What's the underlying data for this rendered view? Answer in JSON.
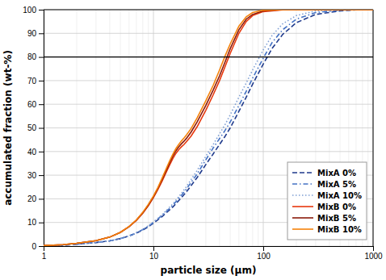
{
  "chart_data": {
    "type": "line",
    "xlabel": "particle size (μm)",
    "ylabel": "accumulated fraction (wt-%)",
    "log": "x",
    "xlim": [
      1,
      1000
    ],
    "ylim": [
      0,
      100
    ],
    "xticks": [
      1,
      10,
      100,
      1000
    ],
    "xticks_minor": [
      2,
      3,
      4,
      5,
      6,
      7,
      8,
      9,
      20,
      30,
      40,
      50,
      60,
      70,
      80,
      90,
      200,
      300,
      400,
      500,
      600,
      700,
      800,
      900
    ],
    "yticks": [
      0,
      10,
      20,
      30,
      40,
      50,
      60,
      70,
      80,
      90,
      100
    ],
    "grid": true,
    "legend": "lower right",
    "reference_line": {
      "value": 80,
      "color": "#000000"
    },
    "series": [
      {
        "name": "MixA 0%",
        "color": "#1f3a8c",
        "line_style": "dashed",
        "x": [
          1,
          1.5,
          2,
          3,
          4,
          5,
          6,
          7,
          8,
          9,
          10,
          12,
          15,
          18,
          20,
          25,
          30,
          35,
          40,
          45,
          50,
          60,
          70,
          80,
          90,
          100,
          120,
          150,
          200,
          300,
          500,
          700,
          1000
        ],
        "values": [
          0.1,
          0.4,
          0.8,
          1.5,
          2.2,
          3.2,
          4.3,
          5.5,
          6.8,
          8.2,
          9.7,
          12.5,
          16.5,
          20.5,
          23.0,
          29.0,
          34.5,
          39.0,
          43.0,
          46.5,
          50.0,
          57.0,
          63.0,
          68.5,
          73.0,
          77.0,
          83.5,
          89.5,
          94.5,
          98.0,
          99.5,
          99.9,
          100
        ]
      },
      {
        "name": "MixA 5%",
        "color": "#4472c4",
        "line_style": "dashdot",
        "x": [
          1,
          1.5,
          2,
          3,
          4,
          5,
          6,
          7,
          8,
          9,
          10,
          12,
          15,
          18,
          20,
          25,
          30,
          35,
          40,
          45,
          50,
          60,
          70,
          80,
          90,
          100,
          120,
          150,
          200,
          300,
          500,
          700,
          1000
        ],
        "values": [
          0.1,
          0.4,
          0.8,
          1.5,
          2.2,
          3.2,
          4.3,
          5.6,
          7.0,
          8.4,
          10.0,
          13.0,
          17.2,
          21.5,
          24.2,
          30.5,
          36.5,
          41.5,
          45.5,
          49.0,
          52.5,
          59.5,
          65.5,
          71.0,
          75.5,
          79.5,
          86.0,
          91.5,
          96.0,
          98.8,
          99.8,
          100,
          100
        ]
      },
      {
        "name": "MixA 10%",
        "color": "#7f9fd4",
        "line_style": "dotted",
        "x": [
          1,
          1.5,
          2,
          3,
          4,
          5,
          6,
          7,
          8,
          9,
          10,
          12,
          15,
          18,
          20,
          25,
          30,
          35,
          40,
          45,
          50,
          60,
          70,
          80,
          90,
          100,
          120,
          150,
          200,
          300,
          500,
          700,
          1000
        ],
        "values": [
          0.1,
          0.4,
          0.8,
          1.5,
          2.2,
          3.2,
          4.4,
          5.7,
          7.1,
          8.6,
          10.2,
          13.3,
          17.8,
          22.3,
          25.2,
          32.0,
          38.0,
          43.0,
          47.5,
          51.5,
          55.5,
          63.0,
          69.0,
          74.5,
          79.0,
          83.0,
          89.0,
          94.0,
          97.5,
          99.5,
          99.9,
          100,
          100
        ]
      },
      {
        "name": "MixB 0%",
        "color": "#e8380d",
        "line_style": "solid",
        "x": [
          1,
          1.5,
          2,
          3,
          4,
          5,
          6,
          7,
          8,
          9,
          10,
          11,
          12,
          13,
          14,
          15,
          16,
          17,
          18,
          19,
          20,
          22,
          25,
          30,
          35,
          40,
          45,
          50,
          60,
          70,
          80,
          100,
          150,
          200,
          300,
          500,
          700,
          1000
        ],
        "values": [
          0.2,
          0.6,
          1.2,
          2.3,
          3.8,
          5.8,
          8.2,
          10.9,
          13.9,
          17.1,
          20.5,
          24.0,
          27.5,
          31.0,
          34.2,
          37.0,
          39.2,
          40.8,
          42.0,
          43.0,
          44.2,
          46.5,
          50.5,
          57.5,
          64.0,
          70.0,
          76.0,
          81.5,
          90.0,
          95.0,
          97.5,
          99.2,
          99.9,
          100,
          100,
          100,
          100,
          100
        ]
      },
      {
        "name": "MixB 5%",
        "color": "#8b1a0a",
        "line_style": "solid",
        "x": [
          1,
          1.5,
          2,
          3,
          4,
          5,
          6,
          7,
          8,
          9,
          10,
          11,
          12,
          13,
          14,
          15,
          16,
          17,
          18,
          19,
          20,
          22,
          25,
          30,
          35,
          40,
          45,
          50,
          60,
          70,
          80,
          100,
          150,
          200,
          300,
          500,
          700,
          1000
        ],
        "values": [
          0.2,
          0.6,
          1.2,
          2.3,
          3.8,
          5.8,
          8.2,
          11.0,
          14.1,
          17.4,
          20.9,
          24.5,
          28.2,
          31.8,
          35.1,
          38.0,
          40.3,
          42.0,
          43.3,
          44.4,
          45.6,
          48.2,
          52.5,
          59.5,
          66.0,
          72.0,
          78.0,
          83.5,
          91.5,
          96.0,
          98.0,
          99.5,
          100,
          100,
          100,
          100,
          100,
          100
        ]
      },
      {
        "name": "MixB 10%",
        "color": "#f5820a",
        "line_style": "solid",
        "x": [
          1,
          1.5,
          2,
          3,
          4,
          5,
          6,
          7,
          8,
          9,
          10,
          11,
          12,
          13,
          14,
          15,
          16,
          17,
          18,
          19,
          20,
          22,
          25,
          30,
          35,
          40,
          45,
          50,
          60,
          70,
          80,
          100,
          150,
          200,
          300,
          500,
          700,
          1000
        ],
        "values": [
          0.2,
          0.6,
          1.2,
          2.3,
          3.8,
          5.8,
          8.3,
          11.1,
          14.3,
          17.7,
          21.2,
          24.9,
          28.8,
          32.5,
          35.9,
          38.8,
          41.2,
          43.0,
          44.5,
          45.7,
          47.0,
          49.7,
          54.2,
          61.5,
          68.0,
          74.5,
          80.5,
          85.5,
          93.0,
          97.0,
          98.8,
          99.8,
          100,
          100,
          100,
          100,
          100,
          100
        ]
      }
    ]
  }
}
